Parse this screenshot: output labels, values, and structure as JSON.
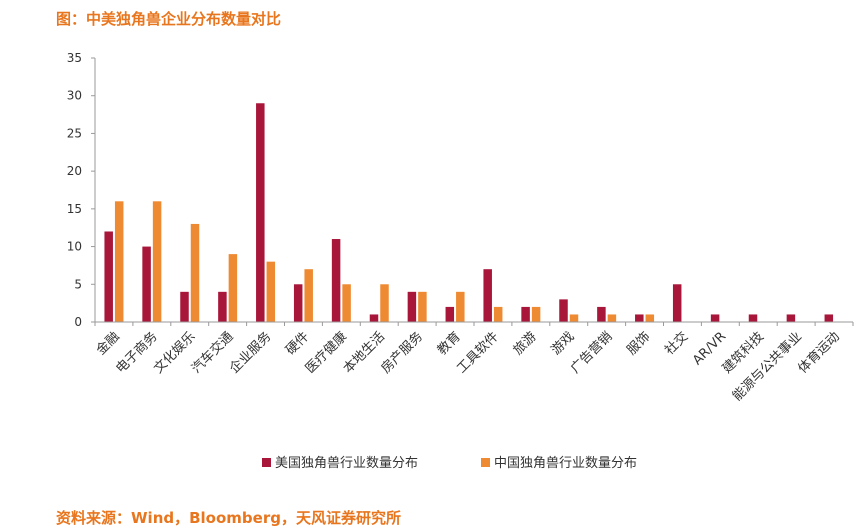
{
  "figure_title": "图：中美独角兽企业分布数量对比",
  "source": "资料来源：Wind，Bloomberg，天风证券研究所",
  "colors": {
    "us": "#a8163a",
    "cn": "#ee8a32",
    "accent": "#e8761e"
  },
  "chart_data": {
    "type": "bar",
    "categories": [
      "金融",
      "电子商务",
      "文化娱乐",
      "汽车交通",
      "企业服务",
      "硬件",
      "医疗健康",
      "本地生活",
      "房产服务",
      "教育",
      "工具软件",
      "旅游",
      "游戏",
      "广告营销",
      "服饰",
      "社交",
      "AR/VR",
      "建筑科技",
      "能源与公共事业",
      "体育运动"
    ],
    "series": [
      {
        "name": "美国独角兽行业数量分布",
        "color": "#a8163a",
        "values": [
          12,
          10,
          4,
          4,
          29,
          5,
          11,
          1,
          4,
          2,
          7,
          2,
          3,
          2,
          1,
          5,
          1,
          1,
          1,
          1
        ]
      },
      {
        "name": "中国独角兽行业数量分布",
        "color": "#ee8a32",
        "values": [
          16,
          16,
          13,
          9,
          8,
          7,
          5,
          5,
          4,
          4,
          2,
          2,
          1,
          1,
          1,
          0,
          0,
          0,
          0,
          0
        ]
      }
    ],
    "ylim": [
      0,
      35
    ],
    "yticks": [
      0,
      5,
      10,
      15,
      20,
      25,
      30,
      35
    ],
    "grid": false,
    "legend": "bottom"
  }
}
